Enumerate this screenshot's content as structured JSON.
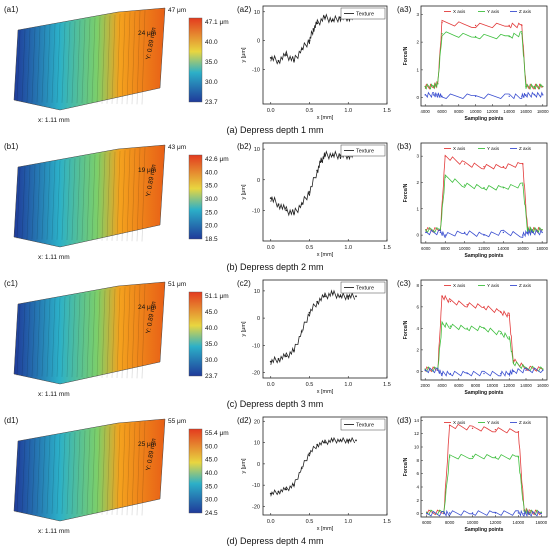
{
  "colors": {
    "texture": "#222222",
    "x_axis": "#e23b3b",
    "y_axis": "#3fbf3f",
    "z_axis": "#3b4fd0",
    "surface_low": "#1f3a9a",
    "surface_mid": "#2cb0c8",
    "surface_high": "#f4a21e",
    "surface_top": "#e85f16"
  },
  "rows": [
    {
      "caption": "(a) Depress depth 1 mm",
      "surface": {
        "label": "(a1)",
        "x_dim": "x: 1.11 mm",
        "y_dim": "Y: 0.89 mm",
        "top_um": "47 μm",
        "mid_um": "24 μm",
        "colorbar_ticks": [
          "47.1 μm",
          "40.0",
          "35.0",
          "30.0",
          "23.7"
        ]
      },
      "profile": {
        "label": "(a2)",
        "legend": "Texture",
        "ylabel": "y [μm]",
        "xlabel": "x [mm]",
        "xticks": [
          "0.0",
          "0.5",
          "1.0",
          "1.5"
        ],
        "yticks": [
          "10",
          "0",
          "-10"
        ]
      },
      "force": {
        "label": "(a3)",
        "ylabel": "Force/N",
        "xlabel": "Sampling points",
        "legend": [
          "X axis",
          "Y axis",
          "Z axis"
        ],
        "xticks": [
          "4000",
          "6000",
          "8000",
          "10000",
          "12000",
          "14000",
          "16000",
          "18000"
        ],
        "yticks": [
          "3",
          "2",
          "1",
          "0"
        ]
      }
    },
    {
      "caption": "(b) Depress depth 2 mm",
      "surface": {
        "label": "(b1)",
        "x_dim": "x: 1.11 mm",
        "y_dim": "Y: 0.89 mm",
        "top_um": "43 μm",
        "mid_um": "19 μm",
        "colorbar_ticks": [
          "42.6 μm",
          "40.0",
          "35.0",
          "30.0",
          "25.0",
          "20.0",
          "18.5"
        ]
      },
      "profile": {
        "label": "(b2)",
        "legend": "Texture",
        "ylabel": "y [μm]",
        "xlabel": "x [mm]",
        "xticks": [
          "0.0",
          "0.5",
          "1.0",
          "1.5"
        ],
        "yticks": [
          "10",
          "0",
          "-10"
        ]
      },
      "force": {
        "label": "(b3)",
        "ylabel": "Force/N",
        "xlabel": "Sampling points",
        "legend": [
          "X axis",
          "Y axis",
          "Z axis"
        ],
        "xticks": [
          "6000",
          "8000",
          "10000",
          "12000",
          "14000",
          "16000",
          "18000"
        ],
        "yticks": [
          "3",
          "2",
          "1",
          "0"
        ]
      }
    },
    {
      "caption": "(c) Depress depth 3 mm",
      "surface": {
        "label": "(c1)",
        "x_dim": "x: 1.11 mm",
        "y_dim": "Y: 0.89 mm",
        "top_um": "51 μm",
        "mid_um": "24 μm",
        "colorbar_ticks": [
          "51.1 μm",
          "45.0",
          "40.0",
          "35.0",
          "30.0",
          "23.7"
        ]
      },
      "profile": {
        "label": "(c2)",
        "legend": "Texture",
        "ylabel": "y [μm]",
        "xlabel": "x [mm]",
        "xticks": [
          "0.0",
          "0.5",
          "1.0",
          "1.5"
        ],
        "yticks": [
          "10",
          "0",
          "-10",
          "-20"
        ]
      },
      "force": {
        "label": "(c3)",
        "ylabel": "Force/N",
        "xlabel": "Sampling points",
        "legend": [
          "X axis",
          "Y axis",
          "Z axis"
        ],
        "xticks": [
          "2000",
          "4000",
          "6000",
          "8000",
          "10000",
          "12000",
          "14000",
          "16000"
        ],
        "yticks": [
          "8",
          "6",
          "4",
          "2",
          "0"
        ]
      }
    },
    {
      "caption": "(d) Depress depth 4 mm",
      "surface": {
        "label": "(d1)",
        "x_dim": "x: 1.11 mm",
        "y_dim": "Y: 0.89 mm",
        "top_um": "55 μm",
        "mid_um": "25 μm",
        "colorbar_ticks": [
          "55.4 μm",
          "50.0",
          "45.0",
          "40.0",
          "35.0",
          "30.0",
          "24.5"
        ]
      },
      "profile": {
        "label": "(d2)",
        "legend": "Texture",
        "ylabel": "y [μm]",
        "xlabel": "x [mm]",
        "xticks": [
          "0.0",
          "0.5",
          "1.0",
          "1.5"
        ],
        "yticks": [
          "20",
          "10",
          "0",
          "-10",
          "-20"
        ]
      },
      "force": {
        "label": "(d3)",
        "ylabel": "Force/N",
        "xlabel": "Sampling points",
        "legend": [
          "X axis",
          "Y axis",
          "Z axis"
        ],
        "xticks": [
          "6000",
          "8000",
          "10000",
          "12000",
          "14000",
          "16000"
        ],
        "yticks": [
          "14",
          "12",
          "10",
          "8",
          "6",
          "4",
          "2",
          "0"
        ]
      }
    }
  ],
  "chart_data": [
    {
      "type": "line",
      "panel": "(a2)",
      "series": [
        {
          "name": "Texture",
          "x": [
            0.0,
            0.1,
            0.2,
            0.3,
            0.4,
            0.5,
            0.55,
            0.6,
            0.7,
            0.8,
            0.9,
            1.0,
            1.1
          ],
          "y": [
            -6,
            -7,
            -5,
            -7,
            -3,
            0,
            4,
            6,
            8,
            7,
            8,
            8,
            8
          ]
        }
      ],
      "xlim": [
        -0.1,
        1.5
      ],
      "ylim": [
        -22,
        12
      ]
    },
    {
      "type": "line",
      "panel": "(a3)",
      "series": [
        {
          "name": "X axis",
          "x": [
            4000,
            5000,
            5500,
            6000,
            10000,
            14000,
            15500,
            16000,
            17000,
            18000
          ],
          "y": [
            0.4,
            0.4,
            0.5,
            2.7,
            2.6,
            2.6,
            2.6,
            0.4,
            0.4,
            0.4
          ]
        },
        {
          "name": "Y axis",
          "x": [
            4000,
            5000,
            5500,
            6000,
            10000,
            14000,
            15500,
            16000,
            17000,
            18000
          ],
          "y": [
            0.4,
            0.4,
            0.5,
            2.3,
            2.2,
            2.2,
            2.3,
            0.4,
            0.4,
            0.4
          ]
        },
        {
          "name": "Z axis",
          "x": [
            4000,
            5000,
            5500,
            6000,
            10000,
            14000,
            15500,
            16000,
            17000,
            18000
          ],
          "y": [
            0.1,
            0.1,
            0.1,
            0.05,
            0.05,
            0.05,
            0.05,
            0.1,
            0.1,
            0.1
          ]
        }
      ],
      "xlim": [
        3500,
        18500
      ],
      "ylim": [
        -0.3,
        3.3
      ]
    },
    {
      "type": "line",
      "panel": "(b2)",
      "series": [
        {
          "name": "Texture",
          "x": [
            0.0,
            0.1,
            0.2,
            0.3,
            0.4,
            0.5,
            0.6,
            0.65,
            0.7,
            0.8,
            0.9,
            1.0,
            1.1
          ],
          "y": [
            -6,
            -8,
            -10,
            -11,
            -8,
            -4,
            3,
            6,
            8,
            8,
            8,
            8,
            8
          ]
        }
      ],
      "xlim": [
        -0.1,
        1.5
      ],
      "ylim": [
        -20,
        12
      ]
    },
    {
      "type": "line",
      "panel": "(b3)",
      "series": [
        {
          "name": "X axis",
          "x": [
            6000,
            7500,
            8000,
            10000,
            12000,
            14000,
            16000,
            16500,
            17000,
            18000
          ],
          "y": [
            0.2,
            0.2,
            3.0,
            2.7,
            2.6,
            2.6,
            2.7,
            0.2,
            0.2,
            0.2
          ]
        },
        {
          "name": "Y axis",
          "x": [
            6000,
            7500,
            8000,
            10000,
            12000,
            14000,
            16000,
            16500,
            17000,
            18000
          ],
          "y": [
            0.2,
            0.2,
            2.2,
            1.9,
            1.8,
            1.8,
            1.9,
            0.2,
            0.2,
            0.2
          ]
        },
        {
          "name": "Z axis",
          "x": [
            6000,
            7500,
            8000,
            10000,
            12000,
            14000,
            16000,
            16500,
            17000,
            18000
          ],
          "y": [
            0.1,
            0.1,
            0.0,
            0.1,
            0.0,
            0.1,
            0.0,
            0.1,
            0.1,
            0.1
          ]
        }
      ],
      "xlim": [
        5500,
        18500
      ],
      "ylim": [
        -0.3,
        3.5
      ]
    },
    {
      "type": "line",
      "panel": "(c2)",
      "series": [
        {
          "name": "Texture",
          "x": [
            0.0,
            0.1,
            0.2,
            0.3,
            0.4,
            0.5,
            0.6,
            0.7,
            0.8,
            0.9,
            1.0,
            1.1
          ],
          "y": [
            -16,
            -15,
            -14,
            -12,
            -5,
            2,
            6,
            8,
            9,
            8,
            8,
            8
          ]
        }
      ],
      "xlim": [
        -0.1,
        1.5
      ],
      "ylim": [
        -22,
        14
      ]
    },
    {
      "type": "line",
      "panel": "(c3)",
      "series": [
        {
          "name": "X axis",
          "x": [
            2000,
            3500,
            4000,
            5000,
            7000,
            9000,
            11000,
            12000,
            12500,
            14000,
            16000
          ],
          "y": [
            0.2,
            0.2,
            7.0,
            6.5,
            6.2,
            6.0,
            5.5,
            5.2,
            1.0,
            0.3,
            0.2
          ]
        },
        {
          "name": "Y axis",
          "x": [
            2000,
            3500,
            4000,
            5000,
            7000,
            9000,
            11000,
            12000,
            12500,
            14000,
            16000
          ],
          "y": [
            0.2,
            0.2,
            4.4,
            4.2,
            4.0,
            4.0,
            3.5,
            3.2,
            0.8,
            0.3,
            0.2
          ]
        },
        {
          "name": "Z axis",
          "x": [
            2000,
            3500,
            4000,
            5000,
            7000,
            9000,
            11000,
            12000,
            12500,
            14000,
            16000
          ],
          "y": [
            0.1,
            0.1,
            -0.2,
            -0.2,
            -0.2,
            -0.2,
            -0.2,
            -0.2,
            0.0,
            0.1,
            0.1
          ]
        }
      ],
      "xlim": [
        1500,
        16500
      ],
      "ylim": [
        -0.8,
        8.5
      ]
    },
    {
      "type": "line",
      "panel": "(d2)",
      "series": [
        {
          "name": "Texture",
          "x": [
            0.0,
            0.1,
            0.2,
            0.3,
            0.4,
            0.5,
            0.6,
            0.7,
            0.8,
            0.9,
            1.0,
            1.1
          ],
          "y": [
            -14,
            -13,
            -12,
            -10,
            -2,
            5,
            9,
            10,
            11,
            11,
            11,
            11
          ]
        }
      ],
      "xlim": [
        -0.1,
        1.5
      ],
      "ylim": [
        -24,
        22
      ]
    },
    {
      "type": "line",
      "panel": "(d3)",
      "series": [
        {
          "name": "X axis",
          "x": [
            6000,
            7500,
            8000,
            10000,
            12000,
            14000,
            14500,
            15000,
            16000
          ],
          "y": [
            0.2,
            0.2,
            13.2,
            12.8,
            12.6,
            12.3,
            0.5,
            0.2,
            0.2
          ]
        },
        {
          "name": "Y axis",
          "x": [
            6000,
            7500,
            8000,
            10000,
            12000,
            14000,
            14500,
            15000,
            16000
          ],
          "y": [
            0.2,
            0.2,
            8.5,
            8.6,
            8.5,
            8.5,
            0.4,
            0.2,
            0.2
          ]
        },
        {
          "name": "Z axis",
          "x": [
            6000,
            7500,
            8000,
            10000,
            12000,
            14000,
            14500,
            15000,
            16000
          ],
          "y": [
            0.0,
            0.0,
            0.1,
            0.1,
            0.1,
            0.1,
            0.0,
            0.0,
            0.0
          ]
        }
      ],
      "xlim": [
        5500,
        16500
      ],
      "ylim": [
        -0.5,
        14.5
      ]
    }
  ]
}
